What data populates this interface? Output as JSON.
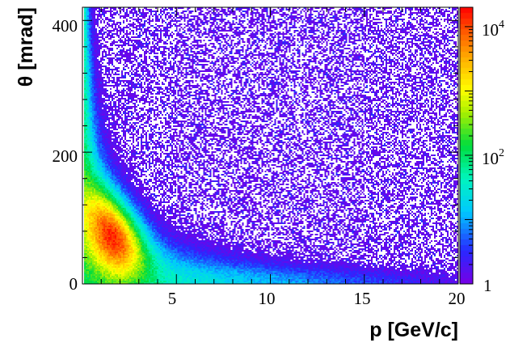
{
  "chart_data": {
    "type": "heatmap",
    "title": "",
    "xlabel": "p [GeV/c]",
    "ylabel": "θ [mrad]",
    "xlim": [
      0,
      20
    ],
    "ylim": [
      0,
      420
    ],
    "x_ticks": [
      "5",
      "10",
      "15",
      "20"
    ],
    "y_ticks": [
      "0",
      "200",
      "400"
    ],
    "z_scale": "log",
    "zlim": [
      1,
      20000
    ],
    "z_ticks": [
      {
        "base": "1",
        "exp": ""
      },
      {
        "base": "10",
        "exp": "2"
      },
      {
        "base": "10",
        "exp": "4"
      }
    ],
    "colormap": "rainbow (purple-blue-cyan-green-yellow-orange-red)",
    "grid": false,
    "peak_region": {
      "p": [
        1.5,
        4
      ],
      "theta": [
        50,
        200
      ],
      "count_approx": 20000
    },
    "density_ridge": [
      {
        "p": 0.5,
        "theta": 420
      },
      {
        "p": 1,
        "theta": 300
      },
      {
        "p": 2,
        "theta": 170
      },
      {
        "p": 3,
        "theta": 120
      },
      {
        "p": 5,
        "theta": 75
      },
      {
        "p": 10,
        "theta": 40
      },
      {
        "p": 15,
        "theta": 25
      },
      {
        "p": 20,
        "theta": 18
      }
    ]
  }
}
